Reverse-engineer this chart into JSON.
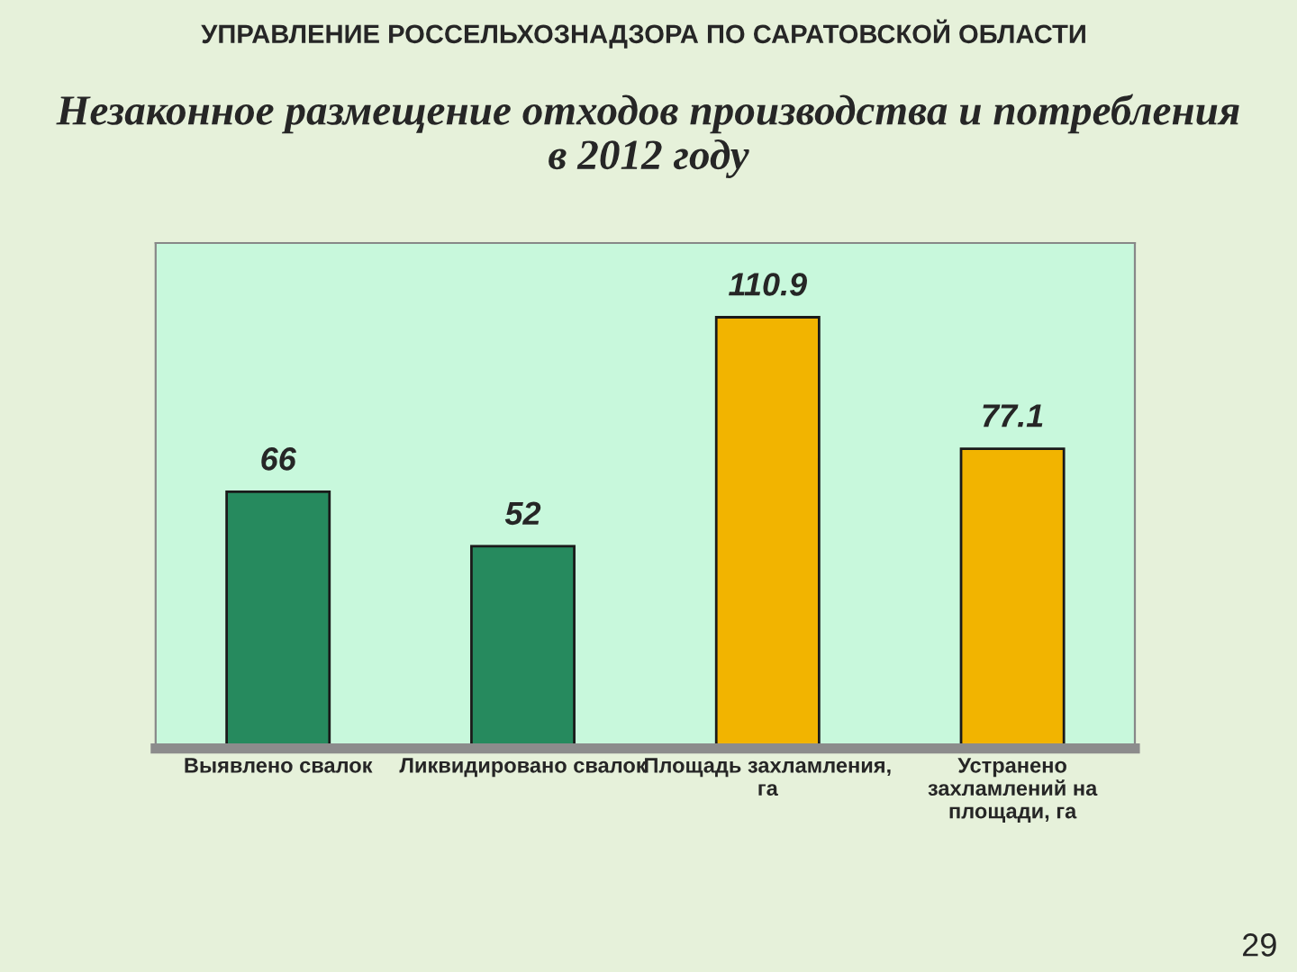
{
  "chart_data": {
    "type": "bar",
    "title": "Незаконное размещение отходов производства и потребления\nв 2012 году",
    "categories": [
      "Выявлено свалок",
      "Ликвидировано свалок",
      "Площадь захламления,\nга",
      "Устранено\nзахламлений на\nплощади, га"
    ],
    "values": [
      66,
      52,
      110.9,
      77.1
    ],
    "colors": [
      "#268a5e",
      "#268a5e",
      "#f2b400",
      "#f2b400"
    ],
    "ylim": [
      0,
      130
    ],
    "tick_labels": "x",
    "data_labels": true,
    "annotations": [
      "УПРАВЛЕНИЕ РОССЕЛЬХОЗНАДЗОРА ПО САРАТОВСКОЙ ОБЛАСТИ",
      "29"
    ]
  }
}
